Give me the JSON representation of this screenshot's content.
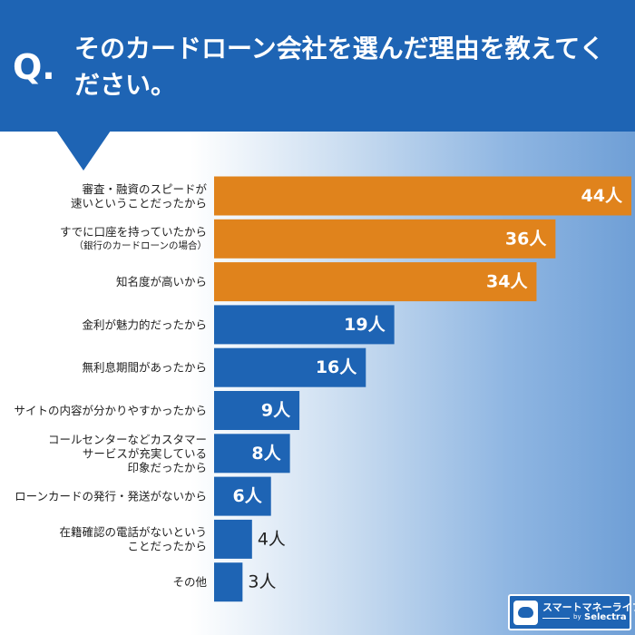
{
  "header": {
    "q_mark": "Q.",
    "question": "そのカードローン会社を選んだ理由を教えてください。"
  },
  "chart_data": {
    "type": "bar",
    "orientation": "horizontal",
    "title": "",
    "xlabel": "",
    "ylabel": "",
    "categories": [
      [
        "審査・融資のスピードが",
        "速いということだったから"
      ],
      [
        "すでに口座を持っていたから",
        "（銀行のカードローンの場合）"
      ],
      [
        "知名度が高いから"
      ],
      [
        "金利が魅力的だったから"
      ],
      [
        "無利息期間があったから"
      ],
      [
        "サイトの内容が分かりやすかったから"
      ],
      [
        "コールセンターなどカスタマー",
        "サービスが充実している",
        "印象だったから"
      ],
      [
        "ローンカードの発行・発送がないから"
      ],
      [
        "在籍確認の電話がないという",
        "ことだったから"
      ],
      [
        "その他"
      ]
    ],
    "values": [
      44,
      36,
      34,
      19,
      16,
      9,
      8,
      6,
      4,
      3
    ],
    "value_labels": [
      "44人",
      "36人",
      "34人",
      "19人",
      "16人",
      "9人",
      "8人",
      "6人",
      "4人",
      "3人"
    ],
    "unit": "人",
    "highlight_top": 3,
    "colors": {
      "highlight": "#e0831c",
      "normal": "#1e64b4"
    },
    "grid": false,
    "legend": "none"
  },
  "logo": {
    "name": "スマートマネーライフ",
    "by": "by",
    "sub": "Selectra"
  }
}
